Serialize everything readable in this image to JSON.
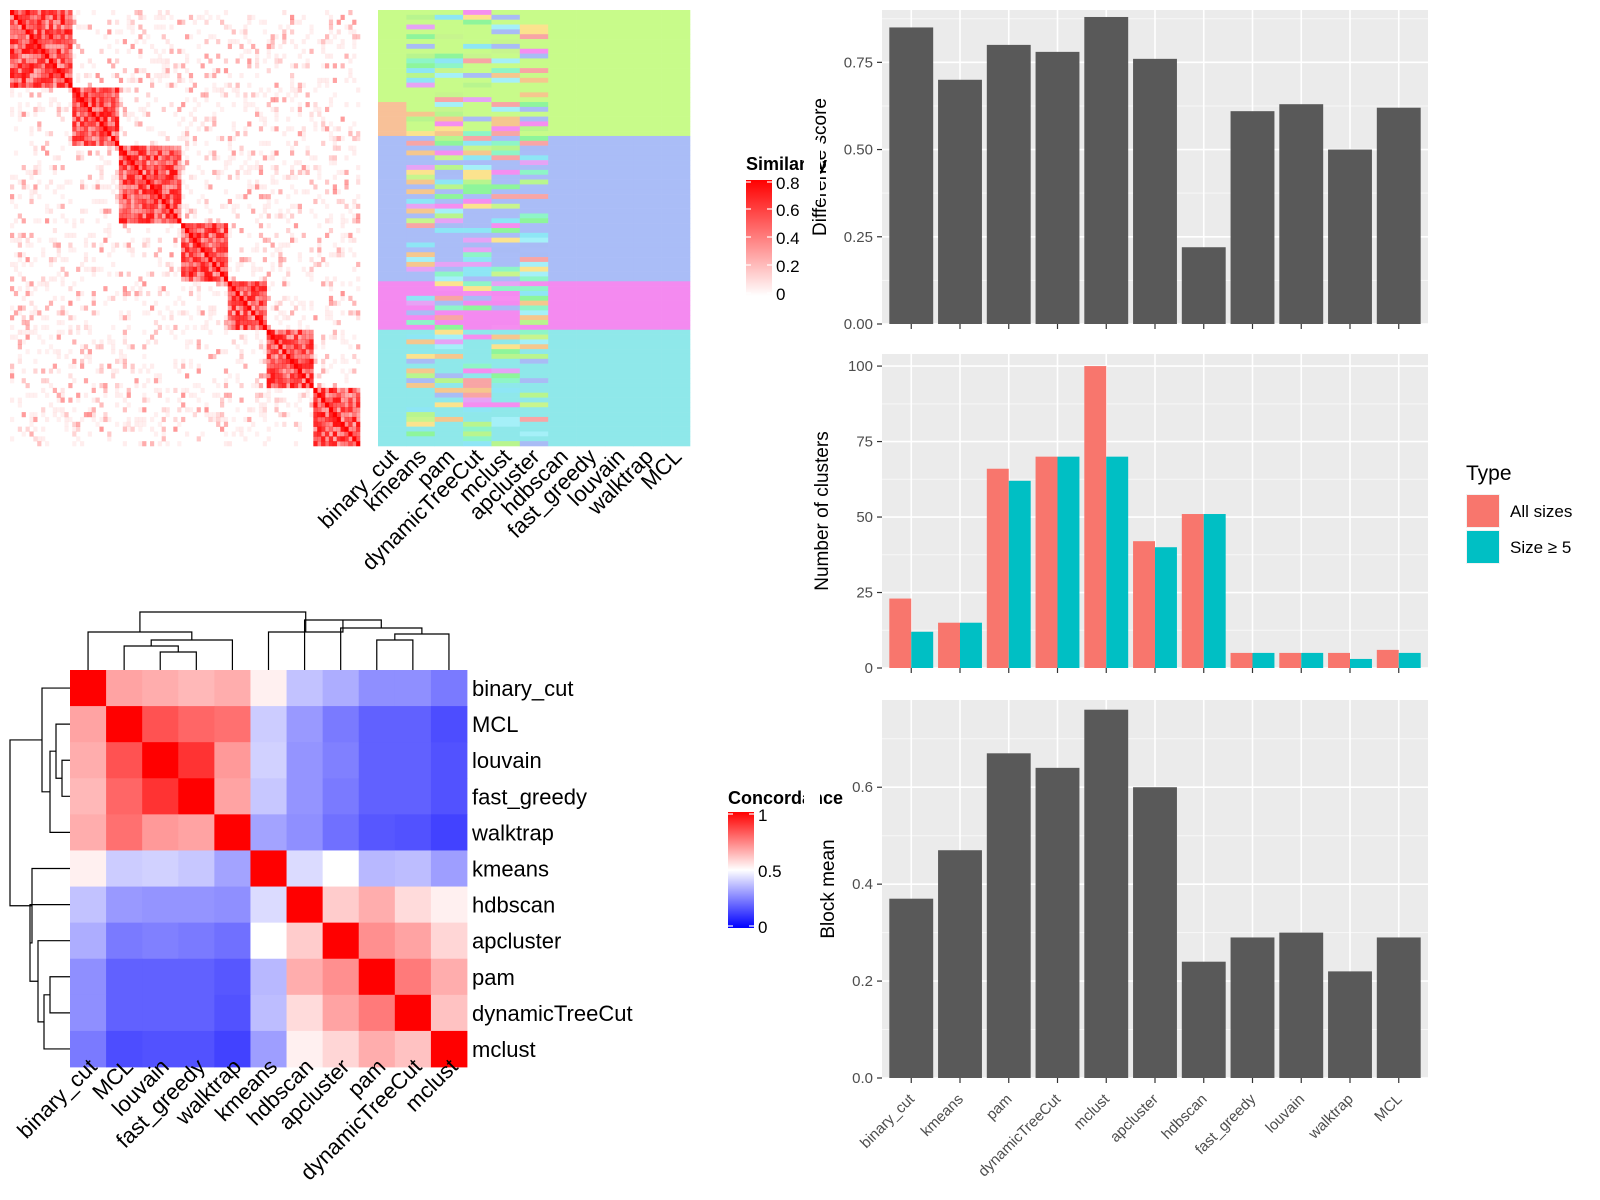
{
  "methods_sim_columns": [
    "binary_cut",
    "kmeans",
    "pam",
    "dynamicTreeCut",
    "mclust",
    "apcluster",
    "hdbscan",
    "fast_greedy",
    "louvain",
    "walktrap",
    "MCL"
  ],
  "similarity_legend": {
    "title": "Similarity",
    "ticks": [
      "0.8",
      "0.6",
      "0.4",
      "0.2",
      "0"
    ]
  },
  "concordance_legend": {
    "title": "Concordance",
    "ticks": [
      "1",
      "0.5",
      "0"
    ]
  },
  "concordance": {
    "order": [
      "binary_cut",
      "MCL",
      "louvain",
      "fast_greedy",
      "walktrap",
      "kmeans",
      "hdbscan",
      "apcluster",
      "pam",
      "dynamicTreeCut",
      "mclust"
    ],
    "matrix": [
      [
        1.0,
        0.68,
        0.66,
        0.64,
        0.66,
        0.53,
        0.38,
        0.34,
        0.28,
        0.28,
        0.24
      ],
      [
        0.68,
        1.0,
        0.84,
        0.8,
        0.78,
        0.4,
        0.3,
        0.24,
        0.19,
        0.19,
        0.15
      ],
      [
        0.66,
        0.84,
        1.0,
        0.9,
        0.7,
        0.41,
        0.29,
        0.25,
        0.19,
        0.19,
        0.16
      ],
      [
        0.64,
        0.8,
        0.9,
        1.0,
        0.68,
        0.39,
        0.29,
        0.24,
        0.19,
        0.19,
        0.16
      ],
      [
        0.66,
        0.78,
        0.7,
        0.68,
        1.0,
        0.32,
        0.28,
        0.22,
        0.17,
        0.16,
        0.13
      ],
      [
        0.53,
        0.4,
        0.41,
        0.39,
        0.32,
        1.0,
        0.43,
        0.5,
        0.36,
        0.37,
        0.31
      ],
      [
        0.38,
        0.3,
        0.29,
        0.29,
        0.28,
        0.43,
        1.0,
        0.6,
        0.66,
        0.57,
        0.53
      ],
      [
        0.34,
        0.24,
        0.25,
        0.24,
        0.22,
        0.5,
        0.6,
        1.0,
        0.72,
        0.68,
        0.58
      ],
      [
        0.28,
        0.19,
        0.19,
        0.19,
        0.17,
        0.36,
        0.66,
        0.72,
        1.0,
        0.76,
        0.66
      ],
      [
        0.28,
        0.19,
        0.19,
        0.19,
        0.16,
        0.37,
        0.57,
        0.68,
        0.76,
        1.0,
        0.62
      ],
      [
        0.24,
        0.15,
        0.16,
        0.16,
        0.13,
        0.31,
        0.53,
        0.58,
        0.66,
        0.62,
        1.0
      ]
    ]
  },
  "chart_data": [
    {
      "type": "bar",
      "categories": [
        "binary_cut",
        "kmeans",
        "pam",
        "dynamicTreeCut",
        "mclust",
        "apcluster",
        "hdbscan",
        "fast_greedy",
        "louvain",
        "walktrap",
        "MCL"
      ],
      "values": [
        0.85,
        0.7,
        0.8,
        0.78,
        0.88,
        0.76,
        0.22,
        0.61,
        0.63,
        0.5,
        0.62
      ],
      "ylabel": "Difference score",
      "ylim": [
        0,
        0.9
      ],
      "yticks": [
        "0.00",
        "0.25",
        "0.50",
        "0.75"
      ],
      "color": "#595959"
    },
    {
      "type": "bar",
      "categories": [
        "binary_cut",
        "kmeans",
        "pam",
        "dynamicTreeCut",
        "mclust",
        "apcluster",
        "hdbscan",
        "fast_greedy",
        "louvain",
        "walktrap",
        "MCL"
      ],
      "series": [
        {
          "name": "All sizes",
          "color": "#F8766D",
          "values": [
            23,
            15,
            66,
            70,
            100,
            42,
            51,
            5,
            5,
            5,
            6
          ]
        },
        {
          "name": "Size ≥ 5",
          "color": "#00BFC4",
          "values": [
            12,
            15,
            62,
            70,
            70,
            40,
            51,
            5,
            5,
            3,
            5
          ]
        }
      ],
      "ylabel": "Number of clusters",
      "ylim": [
        0,
        104
      ],
      "yticks": [
        "0",
        "25",
        "50",
        "75",
        "100"
      ],
      "legend": {
        "title": "Type",
        "placement": "right"
      }
    },
    {
      "type": "bar",
      "categories": [
        "binary_cut",
        "kmeans",
        "pam",
        "dynamicTreeCut",
        "mclust",
        "apcluster",
        "hdbscan",
        "fast_greedy",
        "louvain",
        "walktrap",
        "MCL"
      ],
      "values": [
        0.37,
        0.47,
        0.67,
        0.64,
        0.76,
        0.6,
        0.24,
        0.29,
        0.3,
        0.22,
        0.29
      ],
      "ylabel": "Block mean",
      "ylim": [
        0,
        0.78
      ],
      "yticks": [
        "0.0",
        "0.2",
        "0.4",
        "0.6"
      ],
      "color": "#595959"
    }
  ]
}
